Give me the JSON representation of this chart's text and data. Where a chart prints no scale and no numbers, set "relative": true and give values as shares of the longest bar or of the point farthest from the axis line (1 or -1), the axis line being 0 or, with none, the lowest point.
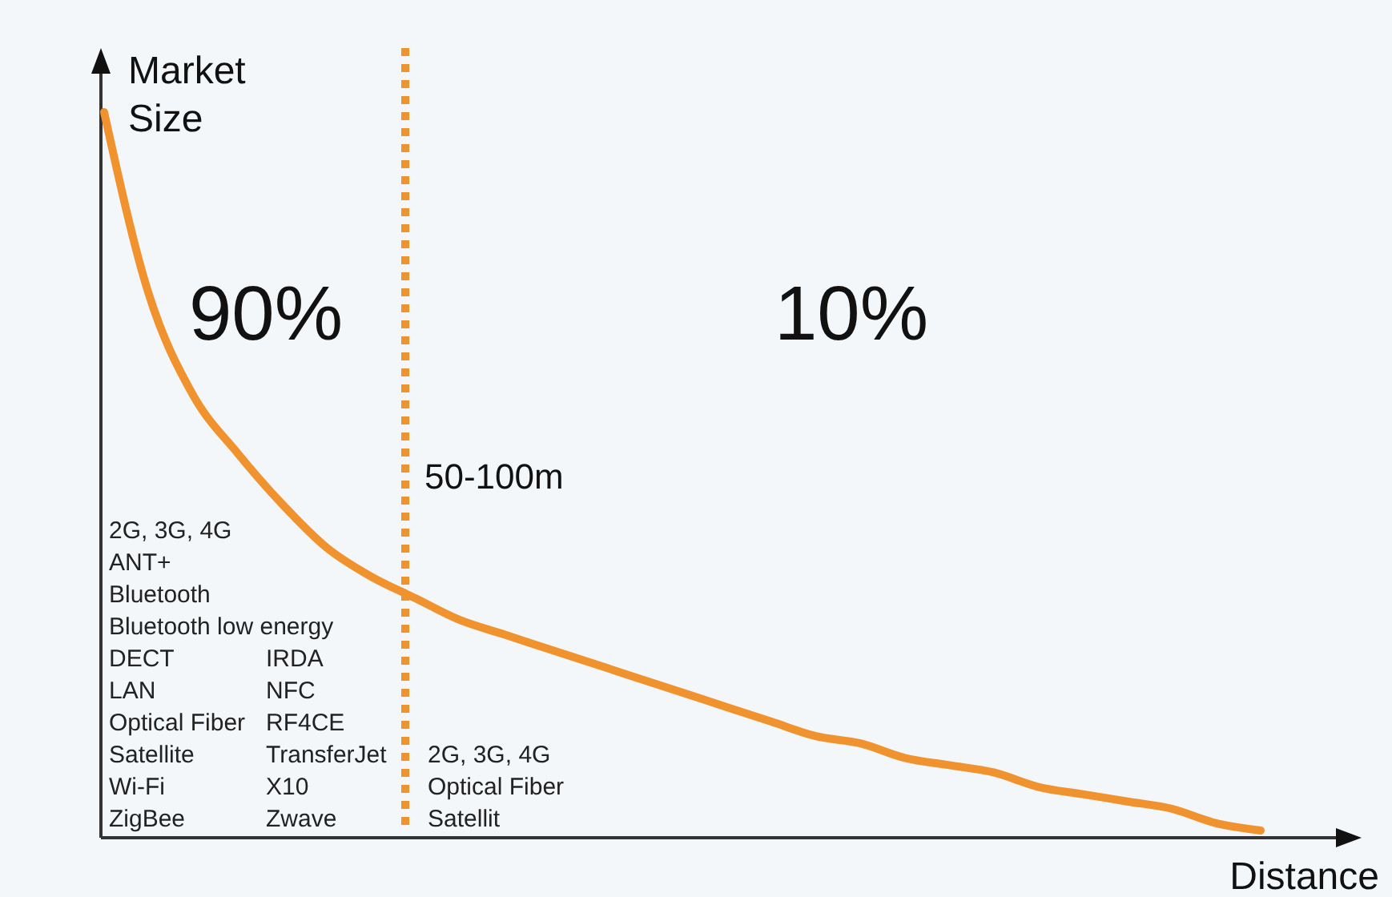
{
  "chart_data": {
    "type": "line",
    "relative": true,
    "xlabel": "Distance",
    "ylabel": "Market Size",
    "color": "#f0922e",
    "categories": [
      null,
      null,
      null,
      null,
      null,
      null,
      null,
      null,
      null,
      null,
      null,
      null,
      null,
      null,
      null,
      null,
      null,
      null,
      null,
      null,
      null,
      null,
      null,
      null,
      null,
      null,
      null
    ],
    "values": [
      1,
      0.75,
      0.61,
      0.53,
      0.46,
      0.4,
      0.36,
      0.33,
      0.3,
      0.28,
      0.26,
      0.24,
      0.22,
      0.2,
      0.18,
      0.16,
      0.14,
      0.13,
      0.11,
      0.1,
      0.09,
      0.07,
      0.06,
      0.05,
      0.04,
      0.02,
      0.01
    ],
    "annotations": [
      "90%",
      "10%",
      "50-100m",
      "2G, 3G, 4G\nANT+\nBluetooth\nBluetooth low energy\nDECT\nLAN\nOptical Fiber\nSatellite\nWi-Fi\nZigBee",
      "IRDA\nNFC\nRF4CE\nTransferJet\nX10\nZwave",
      "2G, 3G, 4G\nOptical Fiber\nSatellit"
    ]
  }
}
